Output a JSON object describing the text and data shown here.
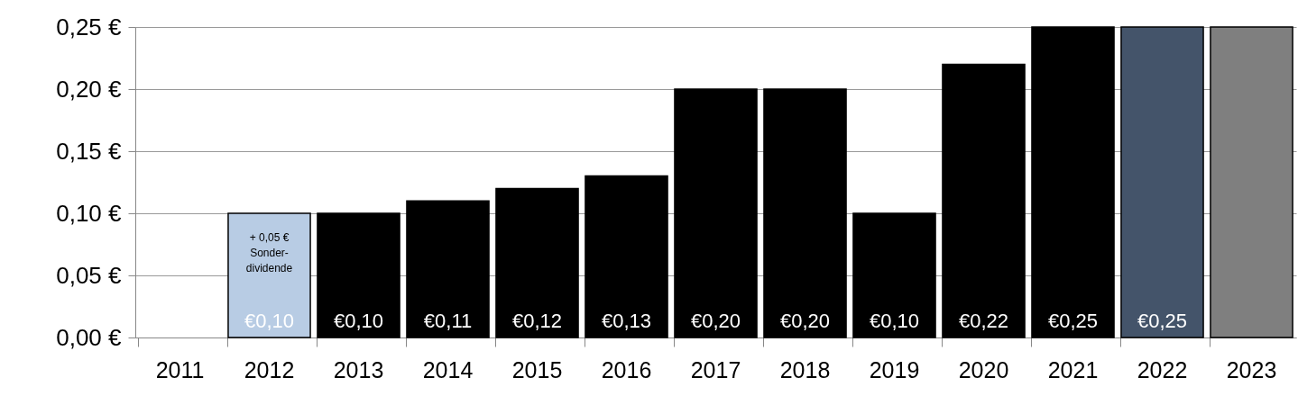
{
  "chart_data": {
    "type": "bar",
    "categories": [
      "2011",
      "2012",
      "2013",
      "2014",
      "2015",
      "2016",
      "2017",
      "2018",
      "2019",
      "2020",
      "2021",
      "2022",
      "2023"
    ],
    "values": [
      null,
      0.1,
      0.1,
      0.11,
      0.12,
      0.13,
      0.2,
      0.2,
      0.1,
      0.22,
      0.25,
      0.25,
      0.25
    ],
    "colors": [
      "#000000",
      "#b8cce4",
      "#000000",
      "#000000",
      "#000000",
      "#000000",
      "#000000",
      "#000000",
      "#000000",
      "#000000",
      "#000000",
      "#44546a",
      "#7f7f7f"
    ],
    "value_labels": [
      null,
      "€0,10",
      "€0,10",
      "€0,11",
      "€0,12",
      "€0,13",
      "€0,20",
      "€0,20",
      "€0,10",
      "€0,22",
      "€0,25",
      "€0,25",
      null
    ],
    "ylim": [
      0,
      0.25
    ],
    "yticks": [
      {
        "value": 0,
        "label": "0,00 €"
      },
      {
        "value": 0.05,
        "label": "0,05 €"
      },
      {
        "value": 0.1,
        "label": "0,10 €"
      },
      {
        "value": 0.15,
        "label": "0,15 €"
      },
      {
        "value": 0.2,
        "label": "0,20 €"
      },
      {
        "value": 0.25,
        "label": "0,25 €"
      }
    ],
    "annotations": [
      {
        "text": "+ 0,05 € Sonder-dividende",
        "x": "2012",
        "y": 0.1
      }
    ],
    "grid": "y"
  }
}
